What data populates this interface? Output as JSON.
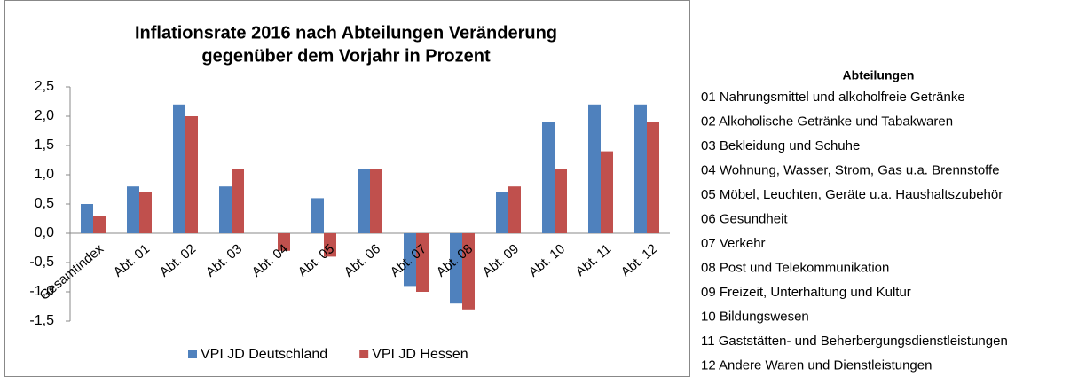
{
  "chart_data": {
    "type": "bar",
    "title": [
      "Inflationsrate 2016 nach Abteilungen Veränderung",
      "gegenüber dem Vorjahr in Prozent"
    ],
    "categories": [
      "Gesamtindex",
      "Abt. 01",
      "Abt. 02",
      "Abt. 03",
      "Abt. 04",
      "Abt. 05",
      "Abt. 06",
      "Abt. 07",
      "Abt. 08",
      "Abt. 09",
      "Abt. 10",
      "Abt. 11",
      "Abt. 12"
    ],
    "series": [
      {
        "name": "VPI JD Deutschland",
        "color": "#4f81bd",
        "values": [
          0.5,
          0.8,
          2.2,
          0.8,
          0.0,
          0.6,
          1.1,
          -0.9,
          -1.2,
          0.7,
          1.9,
          2.2,
          2.2
        ]
      },
      {
        "name": "VPI JD Hessen",
        "color": "#c0504d",
        "values": [
          0.3,
          0.7,
          2.0,
          1.1,
          -0.3,
          -0.4,
          1.1,
          -1.0,
          -1.3,
          0.8,
          1.1,
          1.4,
          1.9
        ]
      }
    ],
    "ylim": [
      -1.5,
      2.5
    ],
    "yticks": [
      {
        "value": -1.5,
        "label": "-1,5"
      },
      {
        "value": -1,
        "label": "-1,0"
      },
      {
        "value": -0.5,
        "label": "-0,5"
      },
      {
        "value": 0,
        "label": "0,0"
      },
      {
        "value": 0.5,
        "label": "0,5"
      },
      {
        "value": 1,
        "label": "1,0"
      },
      {
        "value": 1.5,
        "label": "1,5"
      },
      {
        "value": 2,
        "label": "2,0"
      },
      {
        "value": 2.5,
        "label": "2,5"
      }
    ],
    "grid": false,
    "legend": "bottom"
  },
  "side_panel": {
    "title": "Abteilungen",
    "items": [
      "01 Nahrungsmittel und alkoholfreie Getränke",
      "02 Alkoholische Getränke und Tabakwaren",
      "03 Bekleidung und Schuhe",
      "04 Wohnung, Wasser, Strom, Gas u.a. Brennstoffe",
      "05 Möbel, Leuchten, Geräte u.a. Haushaltszubehör",
      "06 Gesundheit",
      "07 Verkehr",
      "08 Post und Telekommunikation",
      "09 Freizeit, Unterhaltung und Kultur",
      "10 Bildungswesen",
      "11 Gaststätten- und Beherbergungsdienstleistungen",
      "12 Andere Waren und Dienstleistungen"
    ]
  }
}
